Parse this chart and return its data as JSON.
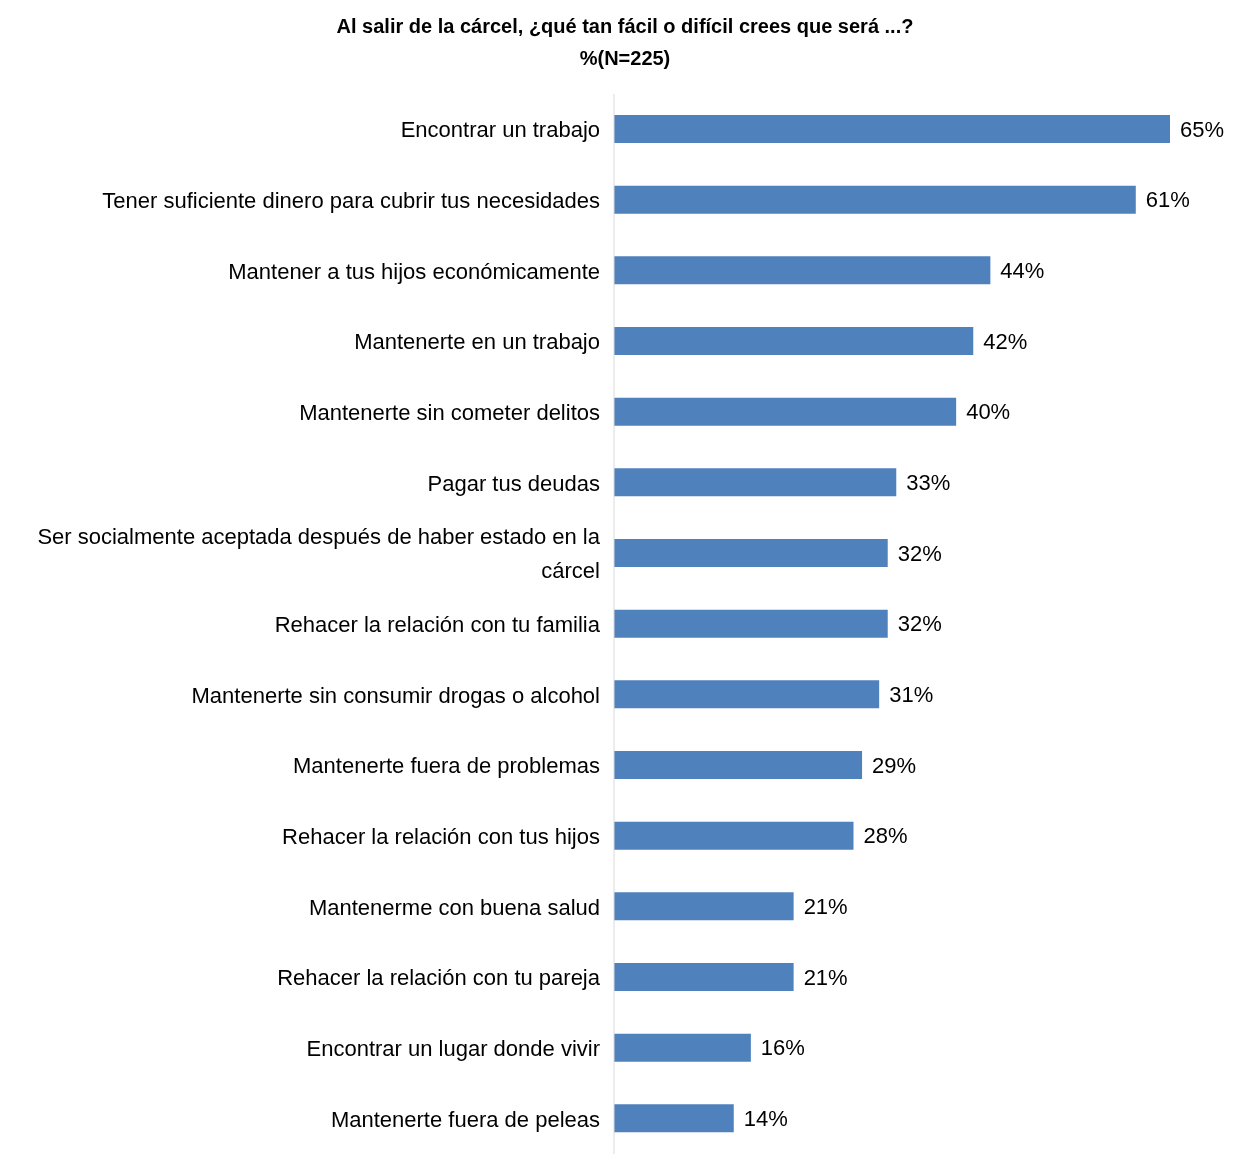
{
  "chart_data": {
    "type": "bar",
    "orientation": "horizontal",
    "title": "Al salir de la cárcel, ¿qué tan fácil o difícil crees que será ...?",
    "subtitle": "%(N=225)",
    "categories": [
      "Encontrar un trabajo",
      "Tener suficiente dinero para cubrir tus necesidades",
      "Mantener a tus hijos económicamente",
      "Mantenerte en un trabajo",
      "Mantenerte sin cometer delitos",
      "Pagar tus deudas",
      "Ser socialmente aceptada después de haber estado en la cárcel",
      "Rehacer la relación con tu familia",
      "Mantenerte sin consumir drogas o alcohol",
      "Mantenerte fuera de problemas",
      "Rehacer la relación con tus hijos",
      "Mantenerme con buena salud",
      "Rehacer la relación con tu pareja",
      "Encontrar un lugar donde vivir",
      "Mantenerte fuera de peleas"
    ],
    "values": [
      65,
      61,
      44,
      42,
      40,
      33,
      32,
      32,
      31,
      29,
      28,
      21,
      21,
      16,
      14
    ],
    "value_labels": [
      "65%",
      "61%",
      "44%",
      "42%",
      "40%",
      "33%",
      "32%",
      "32%",
      "31%",
      "29%",
      "28%",
      "21%",
      "21%",
      "16%",
      "14%"
    ],
    "color": "#4f81bd",
    "xlim": [
      0,
      65
    ],
    "tick_labels": "y"
  }
}
